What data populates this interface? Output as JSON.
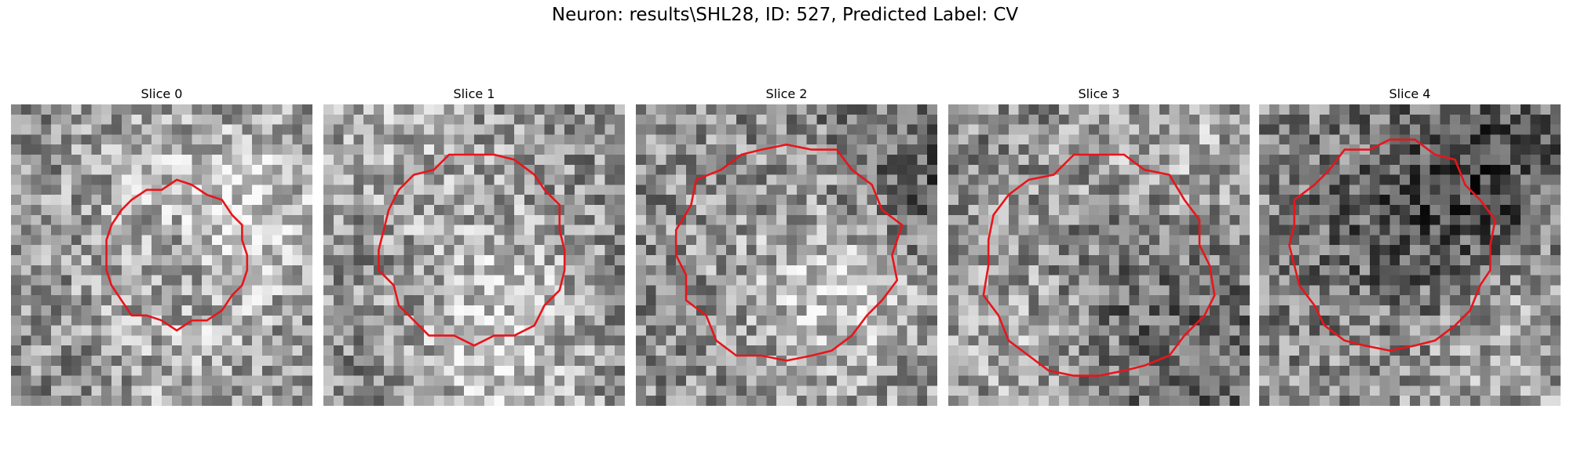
{
  "figure": {
    "title": "Neuron: results\\SHL28, ID: 527, Predicted Label: CV"
  },
  "panels": [
    {
      "title": "Slice 0"
    },
    {
      "title": "Slice 1"
    },
    {
      "title": "Slice 2"
    },
    {
      "title": "Slice 3"
    },
    {
      "title": "Slice 4"
    }
  ],
  "colors": {
    "contour": "#e8151b",
    "background": "#ffffff"
  }
}
